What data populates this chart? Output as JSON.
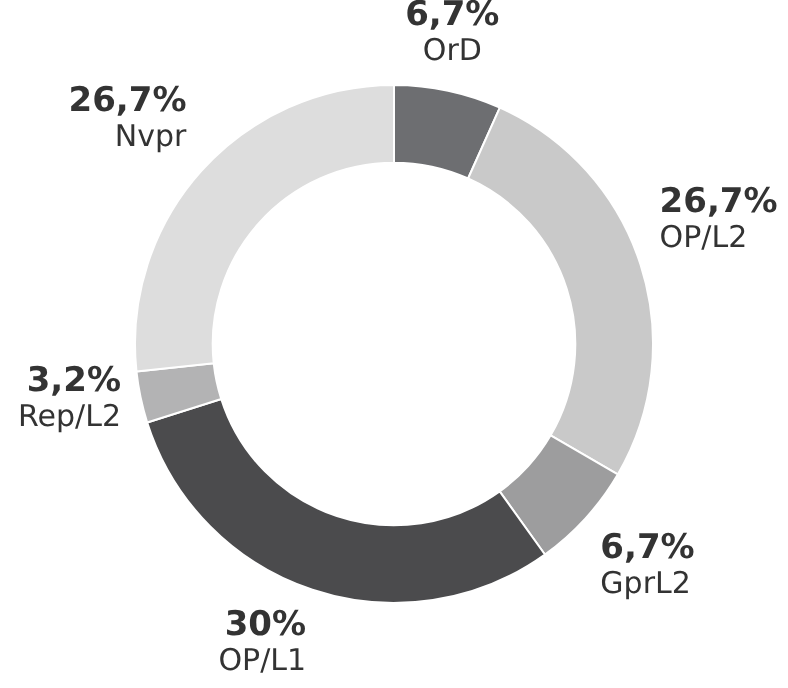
{
  "chart_data": {
    "type": "donut",
    "categories": [
      "OrD",
      "OP/L2",
      "GprL2",
      "OP/L1",
      "Rep/L2",
      "Nvpr"
    ],
    "values": [
      6.7,
      26.7,
      6.7,
      30,
      3.2,
      26.7
    ],
    "value_labels": [
      "6,7%",
      "26,7%",
      "6,7%",
      "30%",
      "3,2%",
      "26,7%"
    ],
    "colors": [
      "#6d6e71",
      "#c9c9c9",
      "#9d9d9e",
      "#4b4b4d",
      "#b3b3b4",
      "#dddddd"
    ],
    "legend": false
  }
}
